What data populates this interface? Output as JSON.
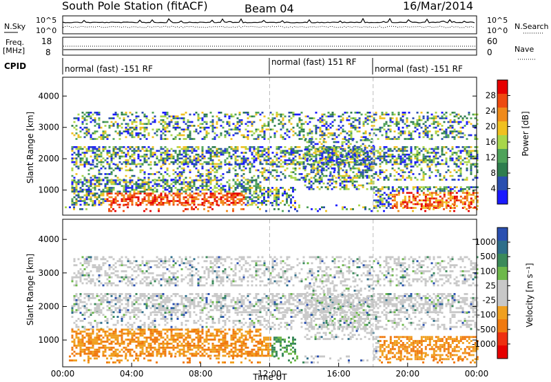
{
  "header": {
    "station": "South Pole Station (fitACF)",
    "beam": "Beam 04",
    "date": "16/Mar/2014"
  },
  "noise_panel": {
    "left_label": "N.Sky",
    "left_ticks": [
      "10^5",
      "10^0"
    ],
    "right_label": "N.Search",
    "right_ticks": [
      "10^5",
      "10^0"
    ]
  },
  "freq_panel": {
    "left_label_1": "Freq.",
    "left_label_2": "[MHz]",
    "left_ticks": [
      "18",
      "8"
    ],
    "right_label": "Nave",
    "right_ticks": [
      "60",
      "0"
    ]
  },
  "cpid": {
    "label": "CPID",
    "segments": [
      {
        "text": "normal (fast) -151 RF",
        "start_hour": 0
      },
      {
        "text": "normal (fast) 151 RF",
        "start_hour": 12
      },
      {
        "text": "normal (fast) -151 RF",
        "start_hour": 18
      }
    ]
  },
  "colors": {
    "power_scale": [
      "#1a1aff",
      "#2a4fb0",
      "#2e7d4e",
      "#4fa35a",
      "#a8d64a",
      "#f0c020",
      "#f08a1a",
      "#ee4a10",
      "#e60000"
    ],
    "velocity_scale": [
      "#2a4fb0",
      "#2e6e8a",
      "#3b8a5a",
      "#6db84a",
      "#c8c8c8",
      "#c8c8c8",
      "#f0a020",
      "#f07a10",
      "#ee3010",
      "#e60000"
    ]
  },
  "chart_data": [
    {
      "type": "heatmap",
      "name": "power-panel",
      "ylabel": "Slant Range [km]",
      "xlabel": "",
      "xlim": [
        0,
        24
      ],
      "ylim": [
        200,
        4600
      ],
      "yticks": [
        "1000",
        "2000",
        "3000",
        "4000"
      ],
      "xticks": [],
      "colorbar": {
        "label": "Power [dB]",
        "ticks": [
          "4",
          "8",
          "12",
          "16",
          "20",
          "24",
          "28"
        ]
      },
      "grid_dashed_hours": [
        12,
        18
      ]
    },
    {
      "type": "heatmap",
      "name": "velocity-panel",
      "ylabel": "Slant Range [km]",
      "xlabel": "Time UT",
      "xlim": [
        0,
        24
      ],
      "ylim": [
        200,
        4600
      ],
      "yticks": [
        "1000",
        "2000",
        "3000",
        "4000"
      ],
      "xticks": [
        "00:00",
        "04:00",
        "08:00",
        "12:00",
        "16:00",
        "20:00",
        "00:00"
      ],
      "colorbar": {
        "label": "Velocity [m s⁻¹]",
        "ticks": [
          "1000",
          "500",
          "100",
          "25",
          "-25",
          "-100",
          "-500",
          "-1000"
        ]
      },
      "grid_dashed_hours": [
        12,
        18
      ]
    }
  ]
}
